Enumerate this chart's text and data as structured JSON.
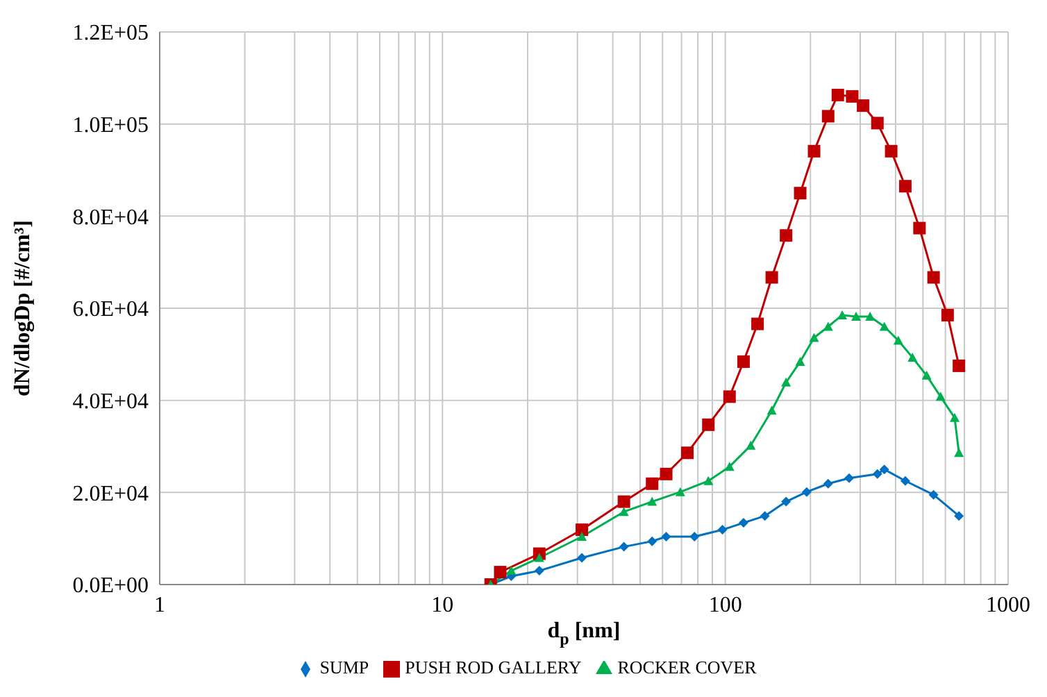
{
  "chart_data": {
    "type": "line",
    "xlabel": "d$_{p}$ [nm]",
    "ylabel": "dN/dlogDp [#/cm³]",
    "log": "x",
    "xlim": [
      1,
      1000
    ],
    "xticks": [
      1,
      {
        "value": 2,
        "label": null
      },
      {
        "value": 3,
        "label": null
      },
      {
        "value": 4,
        "label": null
      },
      {
        "value": 5,
        "label": null
      },
      {
        "value": 6,
        "label": null
      },
      {
        "value": 7,
        "label": null
      },
      {
        "value": 8,
        "label": null
      },
      {
        "value": 9,
        "label": null
      },
      10,
      {
        "value": 20,
        "label": null
      },
      {
        "value": 30,
        "label": null
      },
      {
        "value": 40,
        "label": null
      },
      {
        "value": 50,
        "label": null
      },
      {
        "value": 60,
        "label": null
      },
      {
        "value": 70,
        "label": null
      },
      {
        "value": 80,
        "label": null
      },
      {
        "value": 90,
        "label": null
      },
      100,
      {
        "value": 200,
        "label": null
      },
      {
        "value": 300,
        "label": null
      },
      {
        "value": 400,
        "label": null
      },
      {
        "value": 500,
        "label": null
      },
      {
        "value": 600,
        "label": null
      },
      {
        "value": 700,
        "label": null
      },
      {
        "value": 800,
        "label": null
      },
      {
        "value": 900,
        "label": null
      },
      1000
    ],
    "ylim": [
      0,
      120000
    ],
    "yticks": [
      {
        "value": 0,
        "label": "0.0E+00"
      },
      {
        "value": 20000,
        "label": "2.0E+04"
      },
      {
        "value": 40000,
        "label": "4.0E+04"
      },
      {
        "value": 60000,
        "label": "6.0E+04"
      },
      {
        "value": 80000,
        "label": "8.0E+04"
      },
      {
        "value": 100000,
        "label": "1.0E+05"
      },
      {
        "value": 120000,
        "label": "1.2E+05"
      }
    ],
    "grid": true,
    "legend": "bottom",
    "series": [
      {
        "name": "SUMP",
        "color": "#0070c0",
        "marker": "diamond",
        "x": [
          14.8,
          17.5,
          22,
          31.1,
          43.8,
          55.1,
          61.8,
          77.8,
          97.7,
          116,
          138,
          164,
          194,
          231,
          274,
          345,
          365,
          433,
          545,
          670
        ],
        "values": [
          0,
          1800,
          3000,
          5800,
          8200,
          9400,
          10400,
          10400,
          11900,
          13400,
          14900,
          18000,
          20100,
          21900,
          23100,
          24000,
          25000,
          22500,
          19500,
          14900
        ]
      },
      {
        "name": "PUSH ROD GALLERY",
        "color": "#c00000",
        "marker": "square",
        "x": [
          14.8,
          16,
          22,
          31.1,
          43.8,
          55.1,
          61.8,
          73.4,
          87.1,
          103.5,
          116,
          130,
          146,
          164,
          184,
          206,
          231,
          250,
          281,
          307,
          345,
          386,
          433,
          486,
          545,
          611,
          670
        ],
        "values": [
          0,
          2700,
          6700,
          11900,
          18000,
          21900,
          24000,
          28600,
          34700,
          40800,
          48400,
          56600,
          66700,
          75800,
          85000,
          94100,
          101700,
          106300,
          106000,
          104000,
          100200,
          94100,
          86500,
          77400,
          66700,
          58500,
          47500
        ]
      },
      {
        "name": "ROCKER COVER",
        "color": "#00b050",
        "marker": "triangle",
        "x": [
          14.8,
          17.5,
          22,
          31.1,
          43.8,
          55.1,
          69.3,
          87.1,
          103.5,
          123,
          146,
          164,
          184,
          206,
          231,
          259,
          290,
          325,
          365,
          409,
          459,
          515,
          577,
          647,
          670
        ],
        "values": [
          0,
          3000,
          5800,
          10400,
          15800,
          18000,
          20100,
          22500,
          25600,
          30200,
          37800,
          43900,
          48400,
          53600,
          56000,
          58500,
          58200,
          58200,
          56000,
          53000,
          49300,
          45400,
          40800,
          36200,
          28600
        ]
      }
    ]
  }
}
